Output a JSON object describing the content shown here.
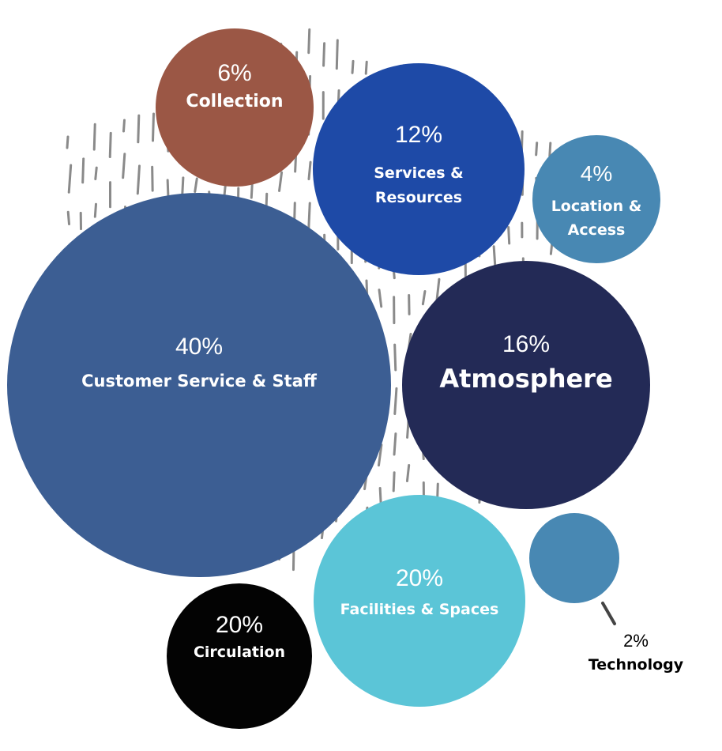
{
  "chart_data": {
    "type": "bubble",
    "series": [
      {
        "value": "6%",
        "label": "Collection",
        "color": "#9b5745"
      },
      {
        "value": "12%",
        "label": "Services & Resources",
        "color": "#1e4aa7"
      },
      {
        "value": "4%",
        "label": "Location & Access",
        "color": "#4888b3"
      },
      {
        "value": "40%",
        "label": "Customer Service & Staff",
        "color": "#3c5e93"
      },
      {
        "value": "16%",
        "label": "Atmosphere",
        "color": "#232a56"
      },
      {
        "value": "20%",
        "label": "Facilities & Spaces",
        "color": "#5bc5d7"
      },
      {
        "value": "20%",
        "label": "Circulation",
        "color": "#030303"
      },
      {
        "value": "2%",
        "label": "Technology",
        "color": "#4888b3"
      }
    ]
  }
}
